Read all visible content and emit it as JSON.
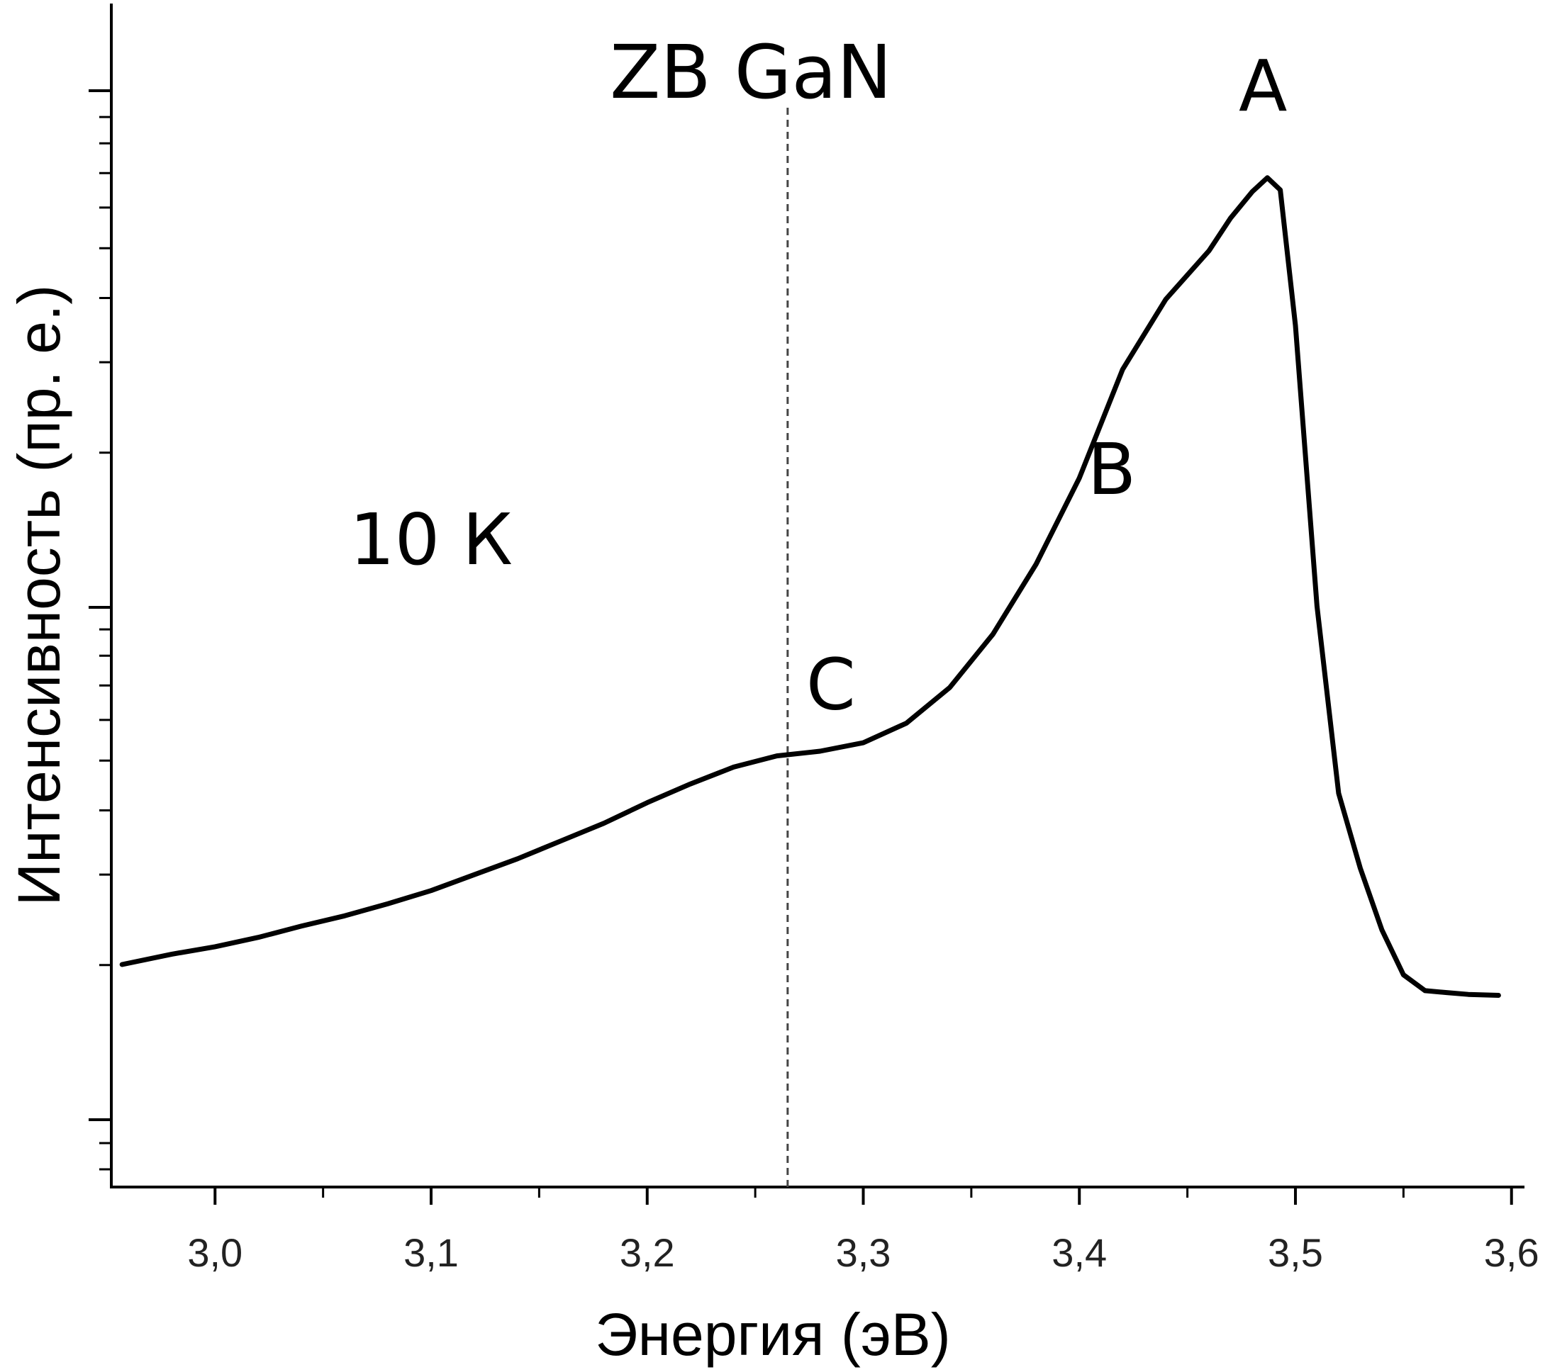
{
  "chart_data": {
    "type": "line",
    "title": "",
    "xlabel": "Энергия (эВ)",
    "ylabel": "Интенсивность (пр. е.)",
    "xlim": [
      2.952,
      3.606
    ],
    "ylim": [
      0,
      1
    ],
    "x_ticks": [
      3.0,
      3.1,
      3.2,
      3.3,
      3.4,
      3.5,
      3.6
    ],
    "x_tick_labels": [
      "3,0",
      "3,1",
      "3,2",
      "3,3",
      "3,4",
      "3,5",
      "3,6"
    ],
    "x_minor_step": 0.05,
    "y_scale": "log",
    "y_tick_labels_visible": false,
    "grid": false,
    "series": [
      {
        "name": "",
        "color": "#000000",
        "x": [
          2.957,
          2.98,
          3.0,
          3.02,
          3.04,
          3.06,
          3.08,
          3.1,
          3.12,
          3.14,
          3.16,
          3.18,
          3.2,
          3.22,
          3.24,
          3.26,
          3.28,
          3.3,
          3.32,
          3.34,
          3.36,
          3.38,
          3.4,
          3.42,
          3.44,
          3.46,
          3.47,
          3.48,
          3.487,
          3.493,
          3.5,
          3.51,
          3.52,
          3.53,
          3.54,
          3.55,
          3.56,
          3.57,
          3.58,
          3.594
        ],
        "y": [
          0.147,
          0.158,
          0.166,
          0.176,
          0.188,
          0.199,
          0.212,
          0.226,
          0.243,
          0.26,
          0.279,
          0.298,
          0.32,
          0.34,
          0.358,
          0.37,
          0.375,
          0.384,
          0.405,
          0.443,
          0.5,
          0.575,
          0.667,
          0.783,
          0.858,
          0.91,
          0.945,
          0.973,
          0.988,
          0.975,
          0.83,
          0.53,
          0.33,
          0.25,
          0.184,
          0.136,
          0.119,
          0.117,
          0.115,
          0.114
        ]
      }
    ],
    "vertical_lines": [
      {
        "x": 3.265,
        "style": "dashed",
        "label": "ZB GaN"
      }
    ],
    "annotations": [
      {
        "text": "A",
        "x": 3.485,
        "y": 1.06
      },
      {
        "text": "B",
        "x": 3.415,
        "y": 0.65
      },
      {
        "text": "C",
        "x": 3.285,
        "y": 0.42
      },
      {
        "text": "10 К",
        "x": 3.1,
        "y": 0.575
      }
    ]
  }
}
